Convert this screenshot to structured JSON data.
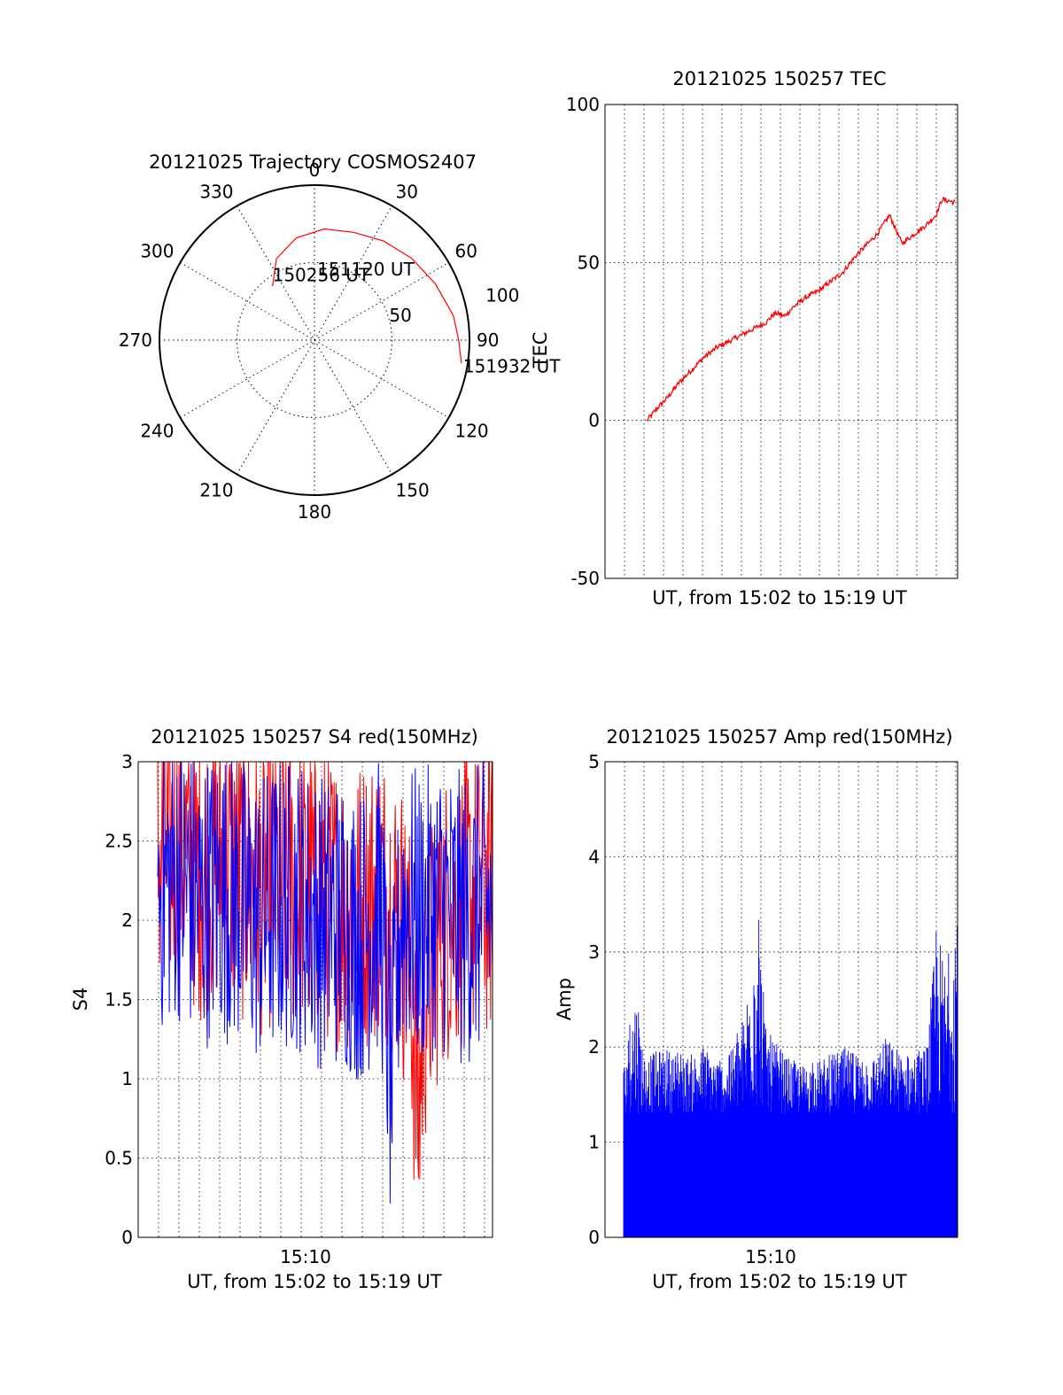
{
  "colors": {
    "axis": "#000000",
    "grid": "#000000",
    "red_series": "#ff0000",
    "blue_series": "#0000ff",
    "background": "#ffffff"
  },
  "chart_data": [
    {
      "id": "trajectory",
      "type": "polar",
      "title": "20121025 Trajectory COSMOS2407",
      "angle_labels": [
        "0",
        "30",
        "60",
        "90",
        "120",
        "150",
        "180",
        "210",
        "240",
        "270",
        "300",
        "330"
      ],
      "angle_direction": "clockwise, 0 at top",
      "radius_labels": [
        "50",
        "100"
      ],
      "grid": true,
      "trajectory_points": [
        {
          "azimuth": 322,
          "elevation": 56
        },
        {
          "azimuth": 335,
          "elevation": 42
        },
        {
          "azimuth": 350,
          "elevation": 33
        },
        {
          "azimuth": 5,
          "elevation": 28
        },
        {
          "azimuth": 20,
          "elevation": 26
        },
        {
          "azimuth": 35,
          "elevation": 22
        },
        {
          "azimuth": 50,
          "elevation": 18
        },
        {
          "azimuth": 65,
          "elevation": 14
        },
        {
          "azimuth": 80,
          "elevation": 9
        },
        {
          "azimuth": 90,
          "elevation": 7
        },
        {
          "azimuth": 99,
          "elevation": 4
        }
      ],
      "annotations": [
        {
          "text": "150256 UT",
          "azimuth": 322,
          "elevation": 56
        },
        {
          "text": "151120 UT",
          "azimuth": 58,
          "elevation": 17
        },
        {
          "text": "151932 UT",
          "azimuth": 99,
          "elevation": 4
        }
      ]
    },
    {
      "id": "tec",
      "type": "line",
      "title": "20121025 150257 TEC",
      "xlabel": "UT, from 15:02 to 15:19 UT",
      "ylabel": "TEC",
      "ylim": [
        -50,
        100
      ],
      "yticks": [
        "100",
        "50",
        "0",
        "-50"
      ],
      "xlim": [
        "15:00:40",
        "15:19:40"
      ],
      "grid": true,
      "series": [
        {
          "color": "#ff0000",
          "x": [
            "15:02:56",
            "15:03:30",
            "15:04:00",
            "15:04:40",
            "15:05:20",
            "15:06:00",
            "15:06:40",
            "15:07:20",
            "15:08:00",
            "15:08:40",
            "15:09:20",
            "15:09:50",
            "15:10:20",
            "15:10:50",
            "15:11:30",
            "15:12:10",
            "15:12:50",
            "15:13:30",
            "15:14:10",
            "15:14:50",
            "15:15:20",
            "15:15:40",
            "15:16:00",
            "15:16:40",
            "15:17:20",
            "15:18:00",
            "15:18:30",
            "15:18:50",
            "15:19:32"
          ],
          "values": [
            0,
            4,
            7,
            12,
            16,
            20,
            23,
            25,
            27,
            29,
            31,
            34,
            33,
            36,
            39,
            41,
            44,
            47,
            52,
            56,
            59,
            62,
            65,
            56,
            59,
            62,
            65,
            70,
            69
          ]
        }
      ]
    },
    {
      "id": "s4",
      "type": "line",
      "title": "20121025 150257 S4 red(150MHz)",
      "xlabel": "UT, from 15:02 to 15:19 UT",
      "ylabel": "S4",
      "ylim": [
        0,
        3
      ],
      "yticks": [
        "3",
        "2.5",
        "2",
        "1.5",
        "1",
        "0.5",
        "0"
      ],
      "xtick_labels": [
        "15:10"
      ],
      "xlim": [
        "15:02:56",
        "15:19:32"
      ],
      "grid": true,
      "series": [
        {
          "color": "#ff0000",
          "x": [
            "15:02:56",
            "15:04:00",
            "15:05:00",
            "15:06:00",
            "15:07:00",
            "15:08:00",
            "15:09:00",
            "15:10:00",
            "15:11:00",
            "15:12:00",
            "15:13:00",
            "15:14:00",
            "15:15:00",
            "15:15:30",
            "15:15:50",
            "15:16:10",
            "15:17:00",
            "15:18:00",
            "15:19:32"
          ],
          "values": [
            2.4,
            2.5,
            2.3,
            2.4,
            2.3,
            2.2,
            2.3,
            2.2,
            2.2,
            2.1,
            2.1,
            2.2,
            2.0,
            1.6,
            0.7,
            1.5,
            2.0,
            2.1,
            2.2
          ]
        },
        {
          "color": "#0000ff",
          "x": [
            "15:02:56",
            "15:04:00",
            "15:05:00",
            "15:06:00",
            "15:07:00",
            "15:08:00",
            "15:09:00",
            "15:10:00",
            "15:11:00",
            "15:12:00",
            "15:13:00",
            "15:14:00",
            "15:14:30",
            "15:15:00",
            "15:16:00",
            "15:17:00",
            "15:18:00",
            "15:19:32"
          ],
          "values": [
            2.2,
            2.3,
            2.1,
            2.2,
            2.1,
            2.0,
            2.1,
            2.1,
            2.0,
            2.0,
            1.9,
            2.1,
            0.9,
            2.1,
            2.0,
            2.1,
            2.0,
            2.1
          ]
        }
      ]
    },
    {
      "id": "amp",
      "type": "line",
      "title": "20121025 150257 Amp red(150MHz)",
      "xlabel": "UT, from 15:02 to 15:19 UT",
      "ylabel": "Amp",
      "ylim": [
        0,
        5
      ],
      "yticks": [
        "5",
        "4",
        "3",
        "2",
        "1",
        "0"
      ],
      "xtick_labels": [
        "15:10"
      ],
      "xlim": [
        "15:02:56",
        "15:19:32"
      ],
      "grid": true,
      "series": [
        {
          "color": "#0000ff",
          "x": [
            "15:02:56",
            "15:03:30",
            "15:04:00",
            "15:05:00",
            "15:06:00",
            "15:07:00",
            "15:08:00",
            "15:09:00",
            "15:09:30",
            "15:10:00",
            "15:11:00",
            "15:12:00",
            "15:13:00",
            "15:14:00",
            "15:15:00",
            "15:16:00",
            "15:17:00",
            "15:18:00",
            "15:18:30",
            "15:19:00",
            "15:19:32"
          ],
          "values": [
            1.8,
            2.6,
            1.9,
            2.0,
            1.9,
            2.0,
            1.8,
            2.4,
            3.8,
            2.2,
            1.9,
            1.8,
            1.9,
            2.0,
            1.8,
            2.1,
            1.9,
            2.0,
            3.3,
            2.8,
            4.0
          ]
        }
      ]
    }
  ]
}
